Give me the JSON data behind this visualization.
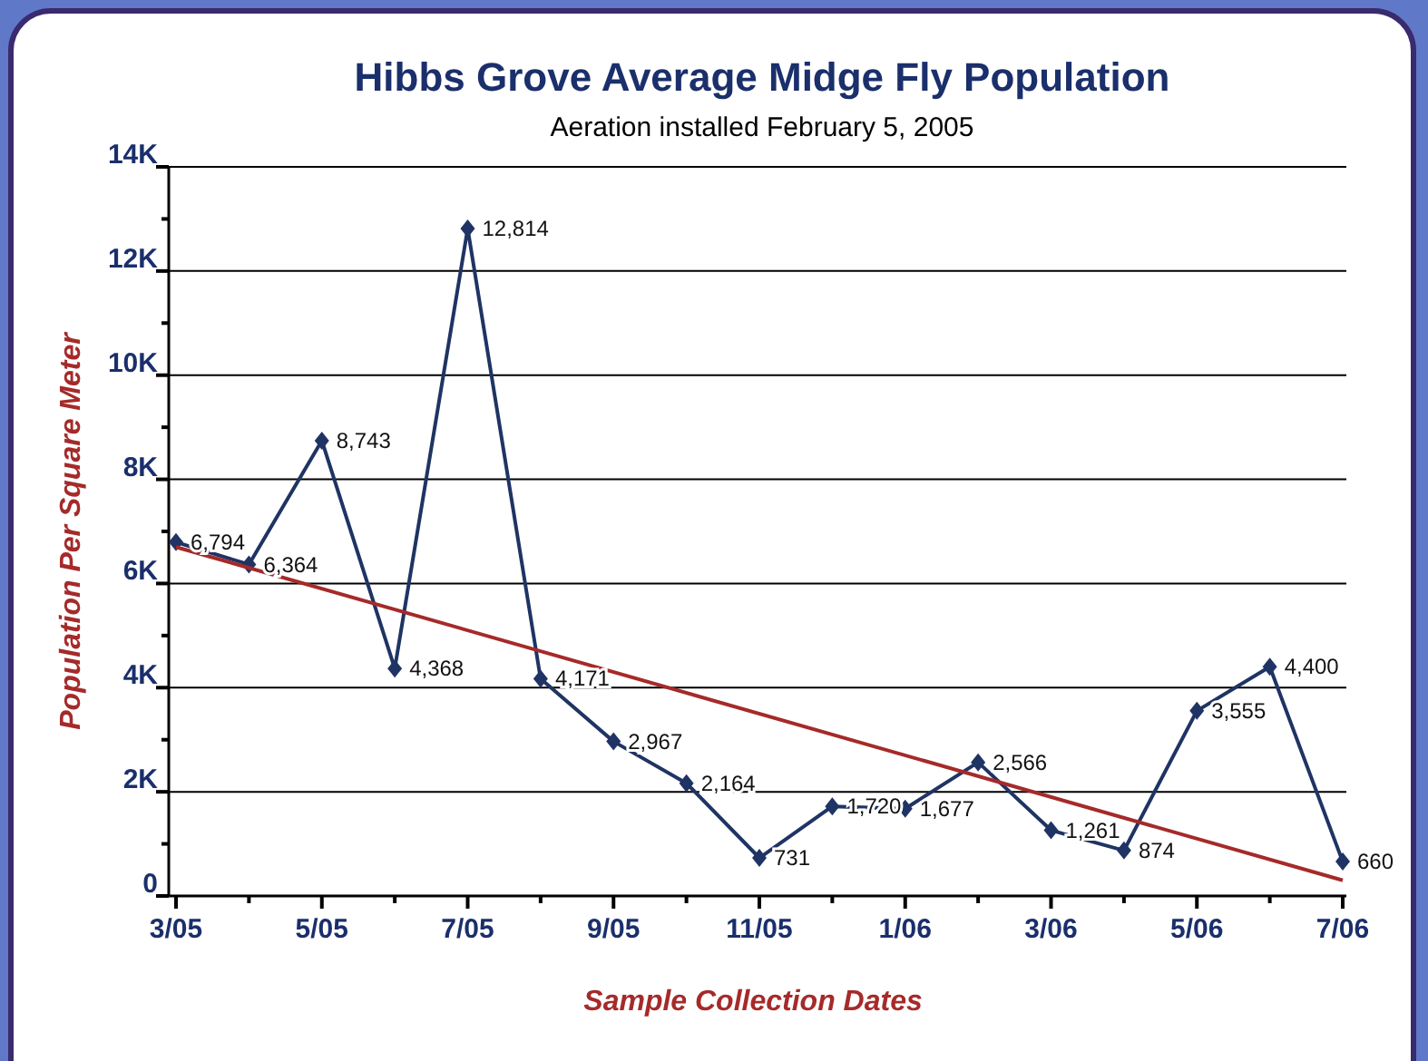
{
  "chart_data": {
    "type": "line",
    "title": "Hibbs Grove Average Midge Fly Population",
    "subtitle": "Aeration installed February 5, 2005",
    "xlabel": "Sample Collection Dates",
    "ylabel": "Population Per Square Meter",
    "categories": [
      "3/05",
      null,
      "5/05",
      null,
      "7/05",
      null,
      "9/05",
      null,
      "11/05",
      null,
      "1/06",
      null,
      "3/06",
      null,
      "5/06",
      null,
      "7/06"
    ],
    "series": [
      {
        "color": "#1f3464",
        "marker": "diamond",
        "values": [
          6794,
          6364,
          8743,
          4368,
          12814,
          4171,
          2967,
          2164,
          731,
          1720,
          1677,
          2566,
          1261,
          874,
          3555,
          4400,
          660
        ],
        "value_labels": [
          "6,794",
          "6,364",
          "8,743",
          "4,368",
          "12,814",
          "4,171",
          "2,967",
          "2,164",
          "731",
          "1,720",
          "1,677",
          "2,566",
          "1,261",
          "874",
          "3,555",
          "4,400",
          "660"
        ]
      },
      {
        "type": "line",
        "color": "#a52a2a",
        "marker": "none",
        "x": [
          "3/05",
          "7/06"
        ],
        "values": [
          6700,
          300
        ]
      }
    ],
    "ylim": [
      0,
      14000
    ],
    "yticks": [
      0,
      {
        "value": 1000,
        "label": null
      },
      {
        "value": 2000,
        "label": "2K"
      },
      {
        "value": 3000,
        "label": null
      },
      {
        "value": 4000,
        "label": "4K"
      },
      {
        "value": 5000,
        "label": null
      },
      {
        "value": 6000,
        "label": "6K"
      },
      {
        "value": 7000,
        "label": null
      },
      {
        "value": 8000,
        "label": "8K"
      },
      {
        "value": 9000,
        "label": null
      },
      {
        "value": 10000,
        "label": "10K"
      },
      {
        "value": 11000,
        "label": null
      },
      {
        "value": 12000,
        "label": "12K"
      },
      {
        "value": 13000,
        "label": null
      },
      {
        "value": 14000,
        "label": "14K"
      }
    ],
    "grid": "y"
  }
}
